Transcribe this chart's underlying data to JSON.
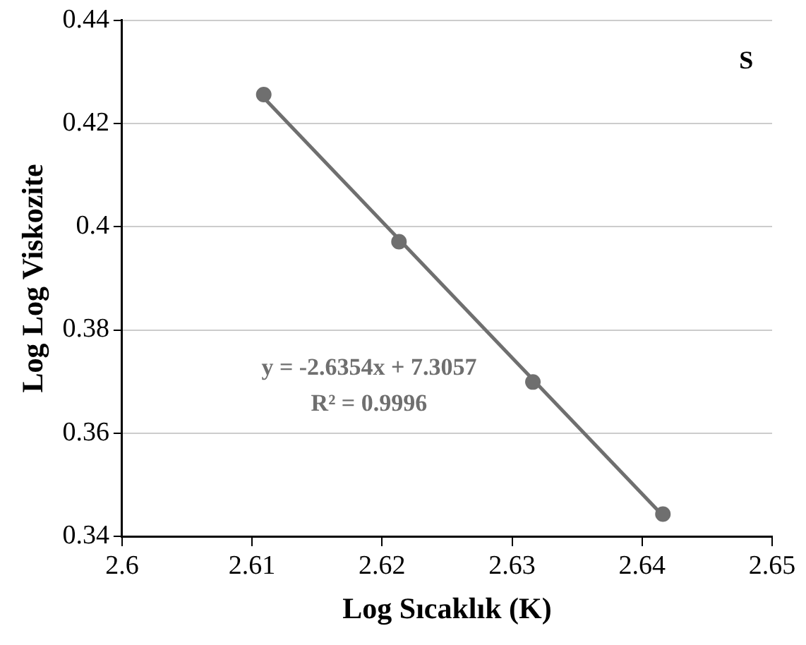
{
  "chart_data": {
    "type": "scatter",
    "xlabel": "Log Sıcaklık (K)",
    "ylabel": "Log Log Viskozite",
    "series": [
      {
        "color": "#6f6f6f",
        "x": [
          2.6109,
          2.6213,
          2.6316,
          2.6416
        ],
        "values": [
          0.4256,
          0.3971,
          0.3699,
          0.3443
        ]
      },
      {
        "type": "line",
        "marker": "none",
        "color": "#6f6f6f",
        "x": [
          2.6109,
          2.6416
        ],
        "values": [
          0.425,
          0.344
        ]
      }
    ],
    "annotations": [
      "y = -2.6354x + 7.3057",
      "R² = 0.9996",
      "S"
    ],
    "xlim": [
      2.6,
      2.65
    ],
    "xticks": [
      2.6,
      2.61,
      2.62,
      2.63,
      2.64,
      2.65
    ],
    "ylim": [
      0.34,
      0.44
    ],
    "yticks": [
      0.34,
      0.36,
      0.38,
      0.4,
      0.42,
      0.44
    ],
    "grid": "y",
    "legend": false,
    "marker": "circle",
    "line_style": "solid"
  }
}
